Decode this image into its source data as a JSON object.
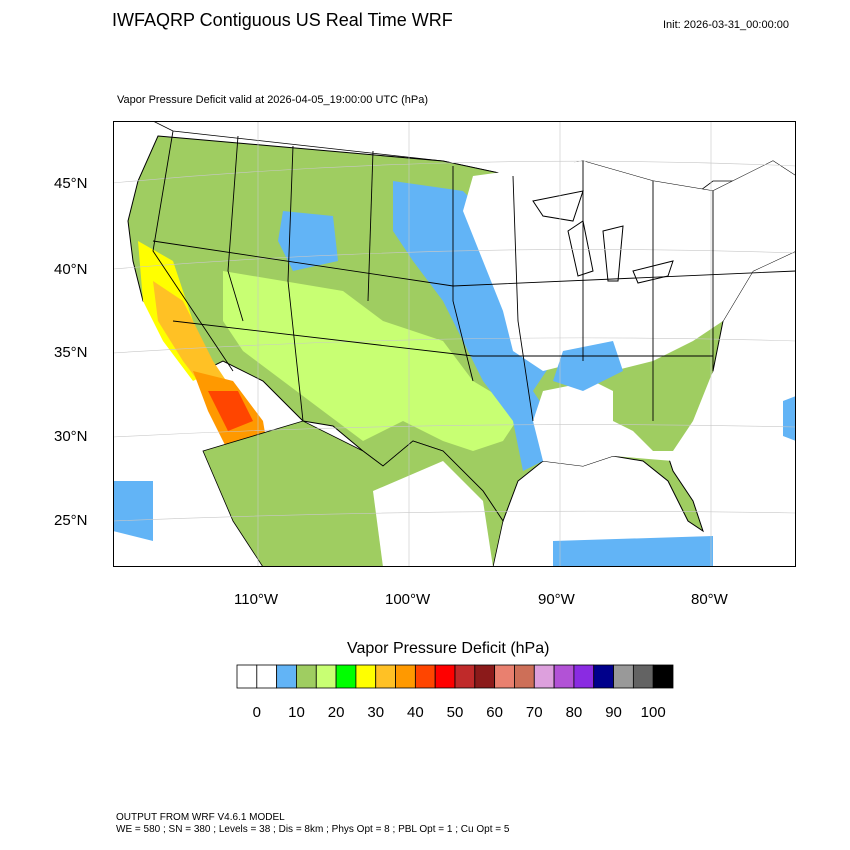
{
  "header": {
    "title": "IWFAQRP Contiguous US Real Time WRF",
    "init": "Init: 2026-03-31_00:00:00",
    "subtitle": "Vapor Pressure Deficit valid at 2026-04-05_19:00:00 UTC   (hPa)"
  },
  "map": {
    "projection": "lambert-conformal",
    "lat_labels": [
      "45°N",
      "40°N",
      "35°N",
      "30°N",
      "25°N"
    ],
    "lon_labels": [
      "110°W",
      "100°W",
      "90°W",
      "80°W"
    ]
  },
  "colorbar": {
    "title": "Vapor Pressure Deficit  (hPa)",
    "colors": [
      "#ffffff",
      "#ffffff",
      "#62b4f6",
      "#9fcd61",
      "#c8ff73",
      "#00ff00",
      "#ffff00",
      "#ffc125",
      "#ff9900",
      "#ff4500",
      "#ff0000",
      "#c02a2a",
      "#8b1a1a",
      "#e9806f",
      "#cd6f58",
      "#dda0dd",
      "#b252d6",
      "#8a2be2",
      "#00008b",
      "#999999",
      "#636363",
      "#000000"
    ],
    "tick_labels": [
      "0",
      "10",
      "20",
      "30",
      "40",
      "50",
      "60",
      "70",
      "80",
      "90",
      "100"
    ]
  },
  "footer": {
    "line1": "OUTPUT FROM WRF V4.6.1 MODEL",
    "line2": "WE = 580 ; SN = 380 ; Levels = 38 ; Dis = 8km ; Phys Opt = 8 ; PBL Opt = 1 ; Cu Opt = 5"
  }
}
